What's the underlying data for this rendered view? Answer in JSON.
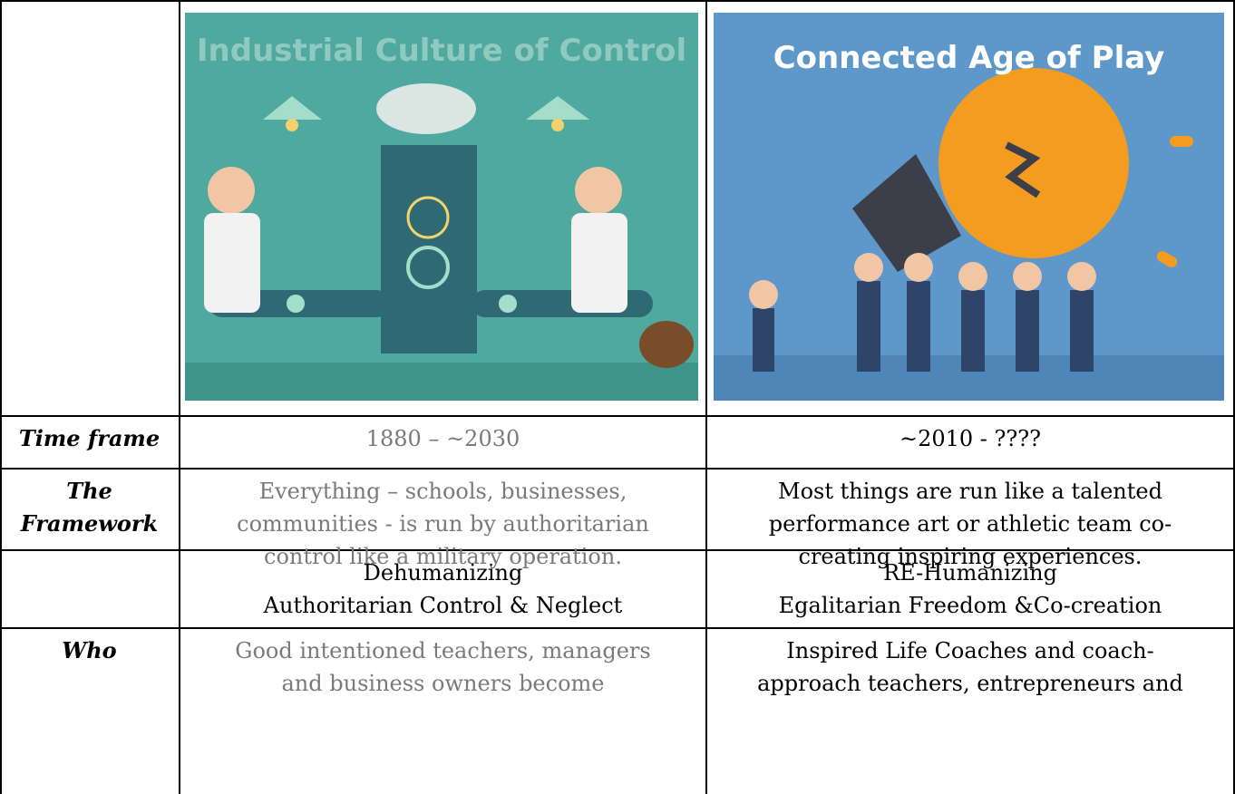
{
  "images": [
    {
      "title": "Industrial Culture of Control"
    },
    {
      "title": "Connected Age of Play"
    }
  ],
  "table": {
    "rows": [
      {
        "label": [
          "Time frame"
        ],
        "left": [
          "1880 – ~2030"
        ],
        "right": [
          "~2010 - ????"
        ]
      },
      {
        "label": [
          "The",
          "Framework"
        ],
        "left": [
          "Everything – schools, businesses,",
          "communities - is run by authoritarian",
          "control like a military operation."
        ],
        "right": [
          "Most things are run like a talented",
          "performance art or athletic team co-",
          "creating inspiring experiences."
        ]
      },
      {
        "left": [
          "Dehumanizing",
          "Authoritarian Control & Neglect"
        ],
        "right": [
          "RE-Humanizing",
          "Egalitarian Freedom &Co-creation"
        ]
      },
      {
        "label": [
          "Who"
        ],
        "left": [
          "Good intentioned teachers, managers",
          "and business owners become"
        ],
        "right": [
          "Inspired Life Coaches and coach-",
          "approach teachers, entrepreneurs and"
        ]
      }
    ]
  }
}
